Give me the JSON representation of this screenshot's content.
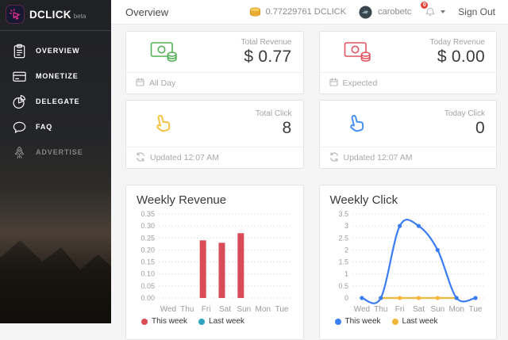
{
  "colors": {
    "accent_pink": "#f02e9a",
    "badge_red": "#e8433b",
    "coin_gold": "#f1b43c"
  },
  "sidebar": {
    "logo": {
      "title": "DCLICK",
      "beta": "beta",
      "icon": "cursor-click-icon"
    },
    "items": [
      {
        "label": "OVERVIEW",
        "icon": "clipboard-icon",
        "state": "active"
      },
      {
        "label": "MONETIZE",
        "icon": "credit-card-icon",
        "state": "normal"
      },
      {
        "label": "DELEGATE",
        "icon": "pie-chart-icon",
        "state": "normal"
      },
      {
        "label": "FAQ",
        "icon": "speech-bubble-icon",
        "state": "normal"
      },
      {
        "label": "ADVERTISE",
        "icon": "rocket-icon",
        "state": "disabled"
      }
    ]
  },
  "header": {
    "title": "Overview",
    "wallet": {
      "icon": "coin-icon",
      "balance": "0.77229761 DCLICK"
    },
    "user": {
      "icon": "avatar",
      "name": "carobetc"
    },
    "notifications": {
      "icon": "bell-icon",
      "count": "0"
    },
    "sign_out_label": "Sign Out"
  },
  "stats": [
    {
      "label": "Total Revenue",
      "value": "$ 0.77",
      "icon": "money-icon",
      "color": "#53b257",
      "footer_icon": "calendar-icon",
      "footer": "All Day"
    },
    {
      "label": "Today Revenue",
      "value": "$ 0.00",
      "icon": "money-icon",
      "color": "#e05561",
      "footer_icon": "calendar-icon",
      "footer": "Expected"
    },
    {
      "label": "Total Click",
      "value": "8",
      "icon": "tap-icon",
      "color": "#f6c244",
      "footer_icon": "refresh-icon",
      "footer": "Updated 12:07 AM"
    },
    {
      "label": "Today Click",
      "value": "0",
      "icon": "tap-icon",
      "color": "#4590f7",
      "footer_icon": "refresh-icon",
      "footer": "Updated 12:07 AM"
    }
  ],
  "chart_data": [
    {
      "type": "bar",
      "title": "Weekly Revenue",
      "categories": [
        "Wed",
        "Thu",
        "Fri",
        "Sat",
        "Sun",
        "Mon",
        "Tue"
      ],
      "series": [
        {
          "name": "This week",
          "color": "#d94b56",
          "values": [
            0,
            0,
            0.24,
            0.23,
            0.27,
            0,
            0
          ]
        },
        {
          "name": "Last week",
          "color": "#2fa3c0",
          "values": [
            0,
            0,
            0,
            0,
            0,
            0,
            0
          ]
        }
      ],
      "xlabel": "",
      "ylabel": "",
      "ylim": [
        0,
        0.35
      ],
      "ytick_step": 0.05,
      "grid": "dotted-horizontal",
      "legend_position": "bottom-left"
    },
    {
      "type": "line",
      "title": "Weekly Click",
      "categories": [
        "Wed",
        "Thu",
        "Fri",
        "Sat",
        "Sun",
        "Mon",
        "Tue"
      ],
      "series": [
        {
          "name": "This week",
          "color": "#3b7df2",
          "values": [
            0,
            0,
            3,
            3,
            2,
            0,
            0
          ]
        },
        {
          "name": "Last week",
          "color": "#f2b63c",
          "values": [
            null,
            0,
            0,
            0,
            0,
            0,
            null
          ]
        }
      ],
      "xlabel": "",
      "ylabel": "",
      "ylim": [
        0,
        3.5
      ],
      "ytick_step": 0.5,
      "grid": "dotted-horizontal",
      "legend_position": "bottom-left"
    }
  ]
}
